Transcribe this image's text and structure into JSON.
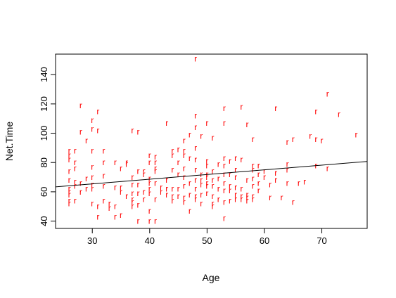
{
  "chart_data": {
    "type": "scatter",
    "title": "",
    "xlabel": "Age",
    "ylabel": "Net.Time",
    "xlim": [
      23.6,
      77.9
    ],
    "ylim": [
      35.0,
      154.0
    ],
    "x_ticks": [
      30,
      40,
      50,
      60,
      70
    ],
    "y_ticks": [
      40,
      60,
      80,
      100,
      120,
      140
    ],
    "grid": false,
    "legend": "none",
    "marker": "r",
    "point_color": "#ff0000",
    "line_color": "#000000",
    "regression_line": {
      "intercept": 55.8,
      "slope": 0.32
    },
    "points": [
      [
        26,
        88
      ],
      [
        26,
        85
      ],
      [
        26,
        82
      ],
      [
        26,
        74
      ],
      [
        26,
        68
      ],
      [
        26,
        62
      ],
      [
        26,
        60
      ],
      [
        26,
        58
      ],
      [
        26,
        54
      ],
      [
        26,
        52
      ],
      [
        27,
        88
      ],
      [
        27,
        80
      ],
      [
        27,
        76
      ],
      [
        27,
        67
      ],
      [
        27,
        64
      ],
      [
        27,
        54
      ],
      [
        28,
        119
      ],
      [
        28,
        101
      ],
      [
        28,
        66
      ],
      [
        28,
        60
      ],
      [
        29,
        95
      ],
      [
        29,
        69
      ],
      [
        29,
        62
      ],
      [
        30,
        109
      ],
      [
        30,
        103
      ],
      [
        30,
        88
      ],
      [
        30,
        77
      ],
      [
        30,
        70
      ],
      [
        30,
        65
      ],
      [
        30,
        62
      ],
      [
        30,
        52
      ],
      [
        31,
        115
      ],
      [
        31,
        102
      ],
      [
        31,
        50
      ],
      [
        31,
        43
      ],
      [
        32,
        88
      ],
      [
        32,
        80
      ],
      [
        32,
        71
      ],
      [
        32,
        64
      ],
      [
        32,
        54
      ],
      [
        33,
        52
      ],
      [
        33,
        49
      ],
      [
        34,
        80
      ],
      [
        34,
        63
      ],
      [
        34,
        50
      ],
      [
        34,
        43
      ],
      [
        35,
        76
      ],
      [
        35,
        63
      ],
      [
        35,
        60
      ],
      [
        35,
        44
      ],
      [
        36,
        80
      ],
      [
        36,
        79
      ],
      [
        36,
        57
      ],
      [
        37,
        102
      ],
      [
        37,
        70
      ],
      [
        37,
        65
      ],
      [
        37,
        59
      ],
      [
        37,
        55
      ],
      [
        37,
        53
      ],
      [
        37,
        50
      ],
      [
        38,
        101
      ],
      [
        38,
        74
      ],
      [
        38,
        65
      ],
      [
        38,
        59
      ],
      [
        38,
        51
      ],
      [
        38,
        40
      ],
      [
        39,
        74
      ],
      [
        39,
        72
      ],
      [
        39,
        60
      ],
      [
        39,
        55
      ],
      [
        40,
        85
      ],
      [
        40,
        80
      ],
      [
        40,
        69
      ],
      [
        40,
        66
      ],
      [
        40,
        62
      ],
      [
        40,
        59
      ],
      [
        40,
        47
      ],
      [
        40,
        40
      ],
      [
        41,
        84
      ],
      [
        41,
        80
      ],
      [
        41,
        76
      ],
      [
        41,
        74
      ],
      [
        41,
        66
      ],
      [
        41,
        55
      ],
      [
        41,
        40
      ],
      [
        42,
        63
      ],
      [
        42,
        60
      ],
      [
        43,
        107
      ],
      [
        43,
        68
      ],
      [
        43,
        62
      ],
      [
        43,
        58
      ],
      [
        44,
        88
      ],
      [
        44,
        85
      ],
      [
        44,
        75
      ],
      [
        44,
        62
      ],
      [
        44,
        57
      ],
      [
        44,
        54
      ],
      [
        45,
        89
      ],
      [
        45,
        80
      ],
      [
        45,
        72
      ],
      [
        45,
        62
      ],
      [
        45,
        57
      ],
      [
        46,
        95
      ],
      [
        46,
        88
      ],
      [
        46,
        85
      ],
      [
        46,
        76
      ],
      [
        46,
        70
      ],
      [
        46,
        64
      ],
      [
        46,
        56
      ],
      [
        46,
        53
      ],
      [
        47,
        99
      ],
      [
        47,
        83
      ],
      [
        47,
        66
      ],
      [
        47,
        58
      ],
      [
        47,
        47
      ],
      [
        48,
        151
      ],
      [
        48,
        112
      ],
      [
        48,
        104
      ],
      [
        48,
        90
      ],
      [
        48,
        82
      ],
      [
        48,
        75
      ],
      [
        48,
        68
      ],
      [
        48,
        62
      ],
      [
        48,
        57
      ],
      [
        48,
        55
      ],
      [
        49,
        98
      ],
      [
        49,
        72
      ],
      [
        49,
        68
      ],
      [
        49,
        65
      ],
      [
        49,
        58
      ],
      [
        49,
        52
      ],
      [
        50,
        107
      ],
      [
        50,
        81
      ],
      [
        50,
        78
      ],
      [
        50,
        72
      ],
      [
        50,
        70
      ],
      [
        50,
        66
      ],
      [
        50,
        64
      ],
      [
        50,
        59
      ],
      [
        51,
        97
      ],
      [
        51,
        74
      ],
      [
        51,
        68
      ],
      [
        51,
        64
      ],
      [
        51,
        57
      ],
      [
        51,
        52
      ],
      [
        51,
        50
      ],
      [
        52,
        79
      ],
      [
        52,
        69
      ],
      [
        52,
        62
      ],
      [
        52,
        55
      ],
      [
        53,
        117
      ],
      [
        53,
        107
      ],
      [
        53,
        83
      ],
      [
        53,
        78
      ],
      [
        53,
        72
      ],
      [
        53,
        66
      ],
      [
        53,
        61
      ],
      [
        53,
        53
      ],
      [
        53,
        42
      ],
      [
        54,
        81
      ],
      [
        54,
        72
      ],
      [
        54,
        64
      ],
      [
        54,
        61
      ],
      [
        54,
        54
      ],
      [
        55,
        83
      ],
      [
        55,
        75
      ],
      [
        55,
        70
      ],
      [
        55,
        63
      ],
      [
        55,
        58
      ],
      [
        55,
        55
      ],
      [
        56,
        118
      ],
      [
        56,
        82
      ],
      [
        56,
        62
      ],
      [
        56,
        57
      ],
      [
        56,
        55
      ],
      [
        57,
        106
      ],
      [
        57,
        68
      ],
      [
        57,
        58
      ],
      [
        57,
        56
      ],
      [
        57,
        54
      ],
      [
        58,
        96
      ],
      [
        58,
        78
      ],
      [
        58,
        75
      ],
      [
        58,
        69
      ],
      [
        58,
        64
      ],
      [
        58,
        57
      ],
      [
        58,
        55
      ],
      [
        59,
        78
      ],
      [
        59,
        72
      ],
      [
        59,
        66
      ],
      [
        59,
        61
      ],
      [
        60,
        74
      ],
      [
        60,
        70
      ],
      [
        61,
        65
      ],
      [
        61,
        56
      ],
      [
        62,
        117
      ],
      [
        62,
        73
      ],
      [
        62,
        68
      ],
      [
        63,
        56
      ],
      [
        64,
        94
      ],
      [
        64,
        79
      ],
      [
        64,
        75
      ],
      [
        64,
        66
      ],
      [
        65,
        96
      ],
      [
        65,
        53
      ],
      [
        66,
        66
      ],
      [
        67,
        67
      ],
      [
        68,
        98
      ],
      [
        69,
        115
      ],
      [
        69,
        96
      ],
      [
        69,
        78
      ],
      [
        70,
        95
      ],
      [
        71,
        127
      ],
      [
        71,
        76
      ],
      [
        73,
        113
      ],
      [
        76,
        99
      ]
    ]
  }
}
